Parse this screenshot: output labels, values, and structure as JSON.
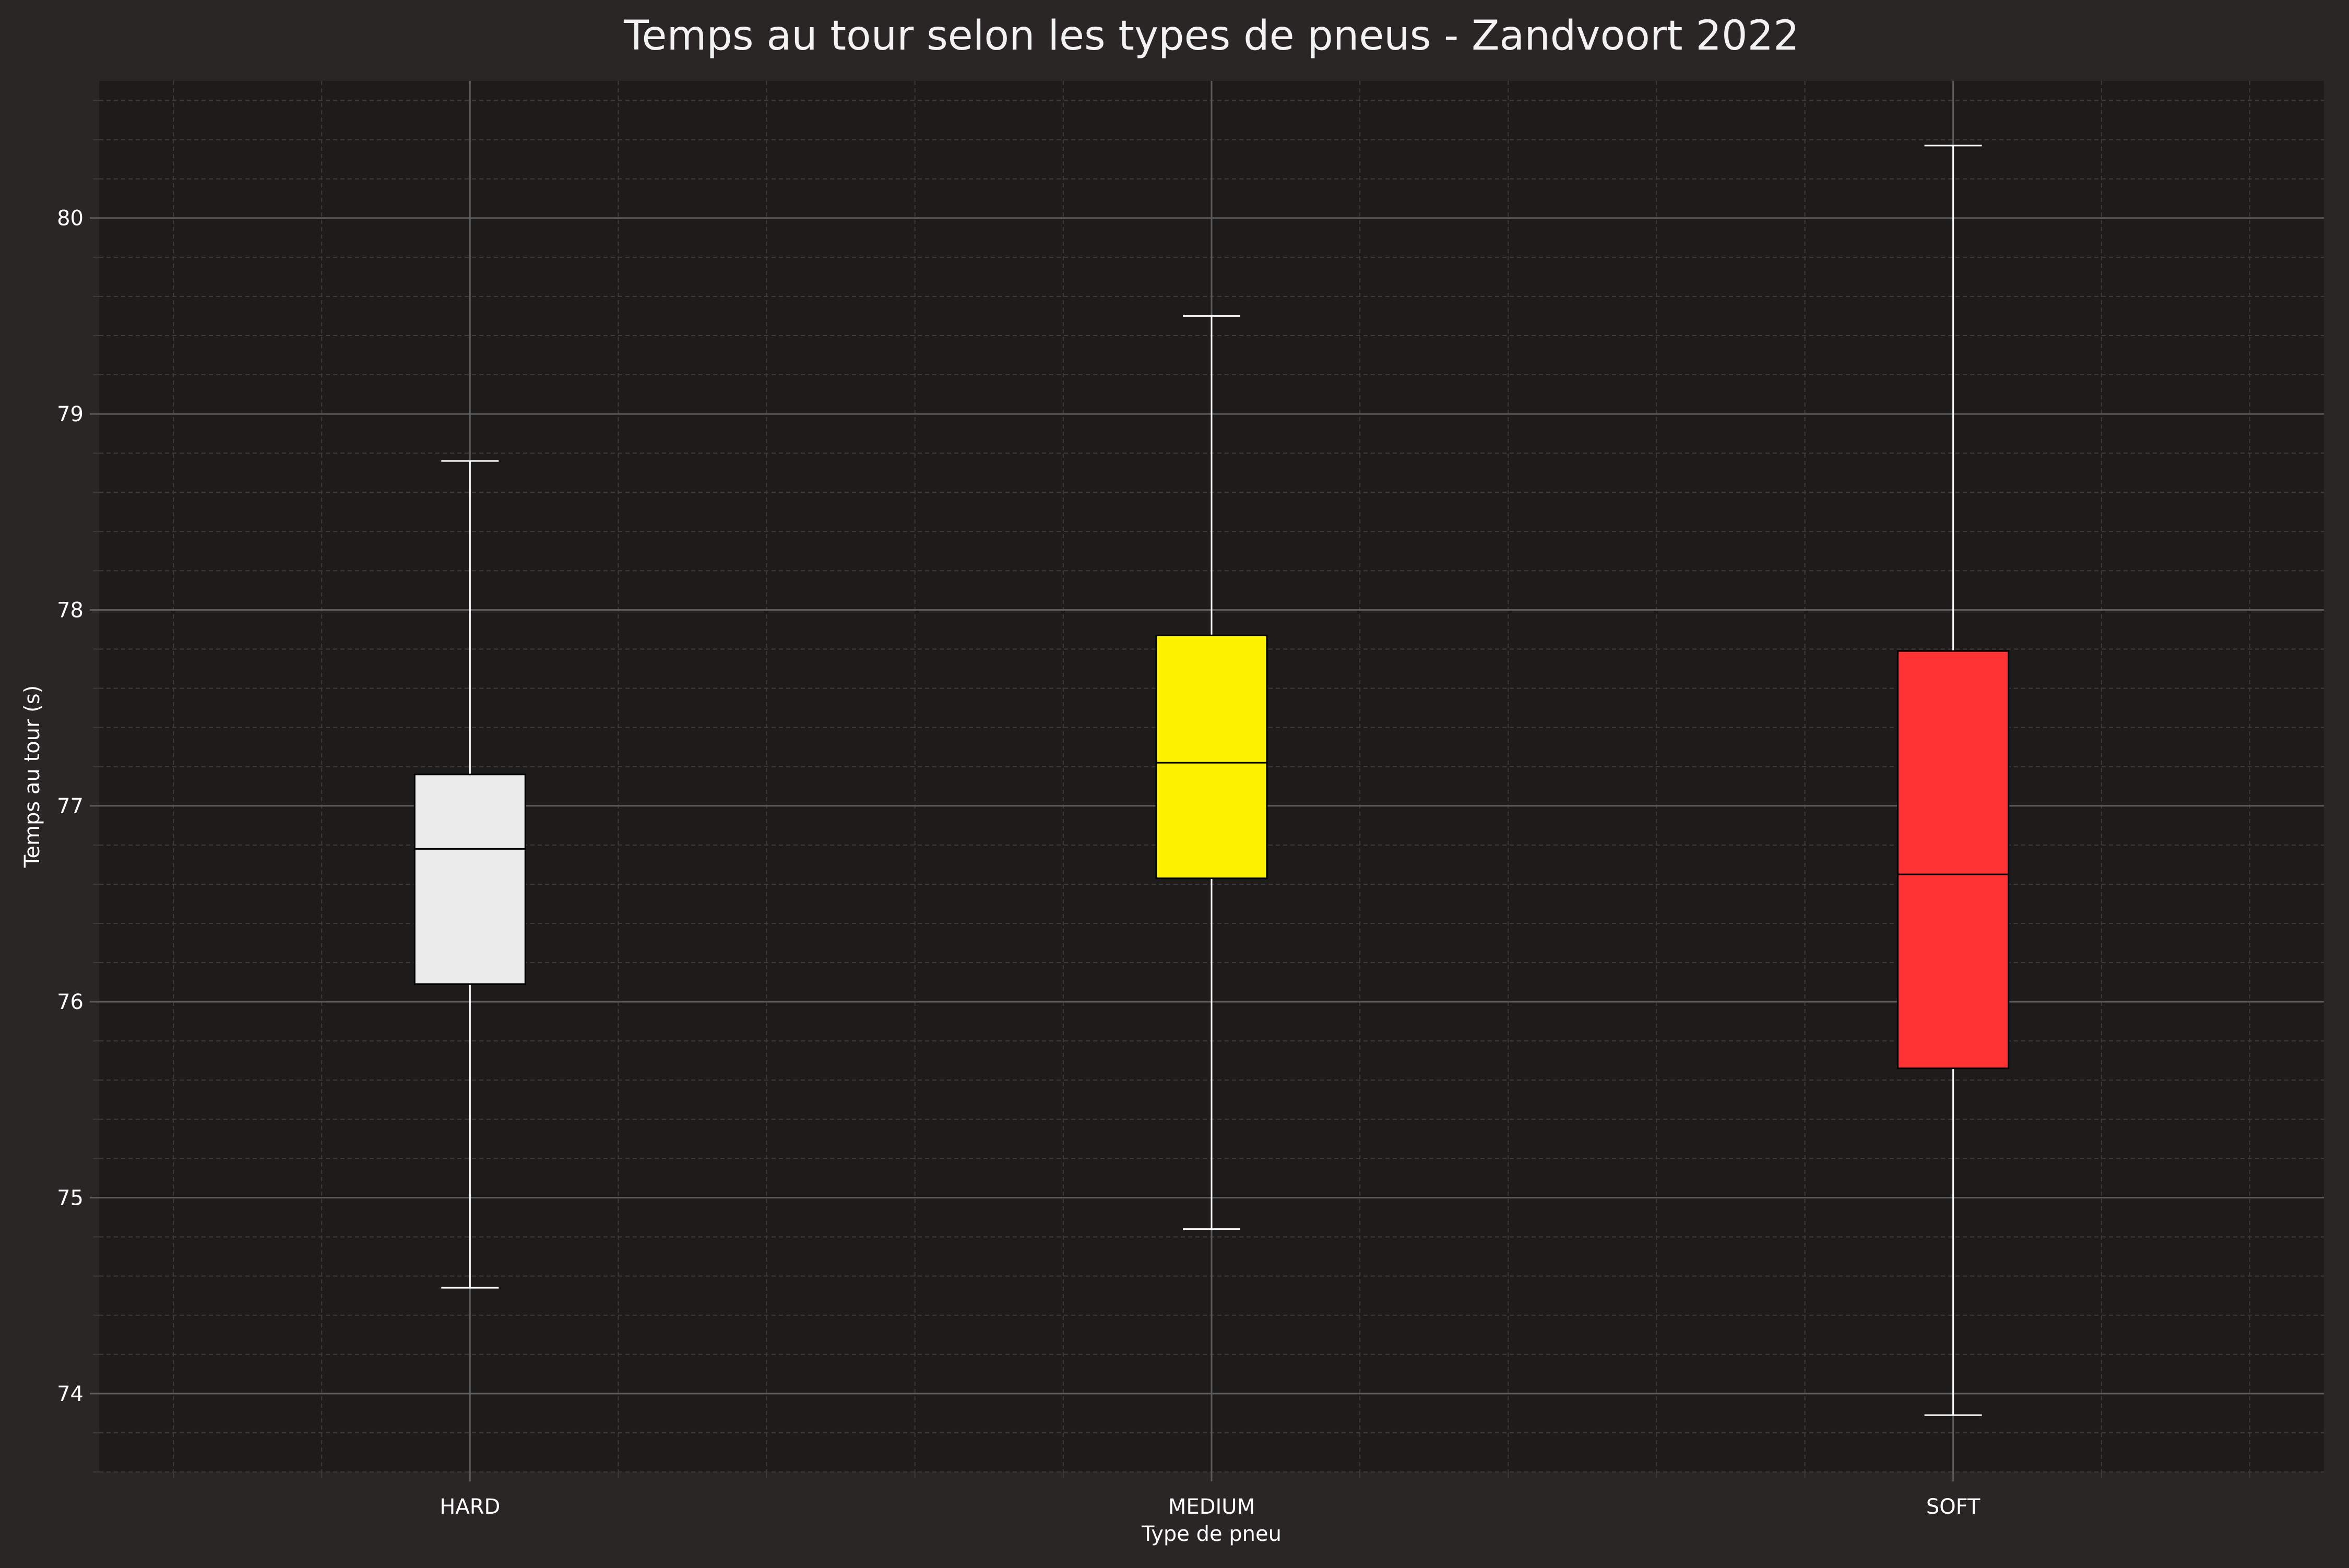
{
  "colors": {
    "figure_bg": "#292625",
    "plot_bg": "#1e1c1b",
    "grid_major": "#5a5a5a",
    "grid_minor": "#3c3b3a",
    "text": "#ffffff",
    "title": "#f2f2f2"
  },
  "chart_data": {
    "type": "box",
    "title": "Temps au tour selon les types de pneus - Zandvoort 2022",
    "xlabel": "Type de pneu",
    "ylabel": "Temps au tour (s)",
    "ylim": [
      73.6,
      80.7
    ],
    "yticks": [
      74,
      75,
      76,
      77,
      78,
      79,
      80
    ],
    "ytick_labels": [
      "74",
      "75",
      "76",
      "77",
      "78",
      "79",
      "80"
    ],
    "grid": true,
    "minor_grid": true,
    "categories": [
      "HARD",
      "MEDIUM",
      "SOFT"
    ],
    "boxes": [
      {
        "category": "HARD",
        "whisker_low": 74.54,
        "q1": 76.09,
        "median": 76.78,
        "q3": 77.16,
        "whisker_high": 78.76,
        "color": "#ebebeb"
      },
      {
        "category": "MEDIUM",
        "whisker_low": 74.84,
        "q1": 76.63,
        "median": 77.22,
        "q3": 77.87,
        "whisker_high": 79.5,
        "color": "#fff200"
      },
      {
        "category": "SOFT",
        "whisker_low": 73.89,
        "q1": 75.66,
        "median": 76.65,
        "q3": 77.79,
        "whisker_high": 80.37,
        "color": "#ff3333"
      }
    ]
  }
}
